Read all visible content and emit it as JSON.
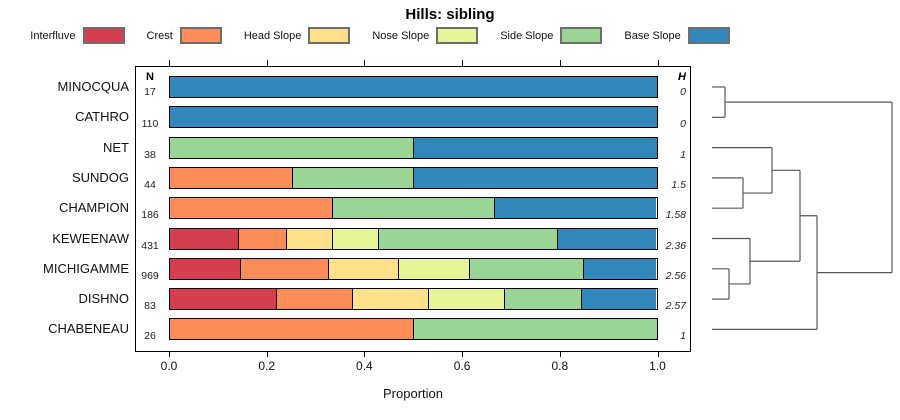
{
  "title": "Hills: sibling",
  "xlabel": "Proportion",
  "n_header": "N",
  "h_header": "H",
  "legend": [
    {
      "label": "Interfluve",
      "color": "#D53E4F"
    },
    {
      "label": "Crest",
      "color": "#FC8D59"
    },
    {
      "label": "Head Slope",
      "color": "#FEE08B"
    },
    {
      "label": "Nose Slope",
      "color": "#E6F598"
    },
    {
      "label": "Side Slope",
      "color": "#99D594"
    },
    {
      "label": "Base Slope",
      "color": "#3288BD"
    }
  ],
  "chart_data": {
    "type": "bar",
    "stacked": true,
    "orientation": "horizontal",
    "title": "Hills: sibling",
    "xlabel": "Proportion",
    "xlim": [
      0,
      1
    ],
    "xtick_labels": [
      "0.0",
      "0.2",
      "0.4",
      "0.6",
      "0.8",
      "1.0"
    ],
    "xtick_values": [
      0,
      0.2,
      0.4,
      0.6,
      0.8,
      1.0
    ],
    "series_names": [
      "Interfluve",
      "Crest",
      "Head Slope",
      "Nose Slope",
      "Side Slope",
      "Base Slope"
    ],
    "series_colors": [
      "#D53E4F",
      "#FC8D59",
      "#FEE08B",
      "#E6F598",
      "#99D594",
      "#3288BD"
    ],
    "rows": [
      {
        "label": "MINOCQUA",
        "n": "17",
        "h": "0",
        "values": [
          0,
          0,
          0,
          0,
          0,
          1.0
        ]
      },
      {
        "label": "CATHRO",
        "n": "110",
        "h": "0",
        "values": [
          0,
          0,
          0,
          0,
          0,
          1.0
        ]
      },
      {
        "label": "NET",
        "n": "38",
        "h": "1",
        "values": [
          0,
          0,
          0,
          0,
          0.5,
          0.5
        ]
      },
      {
        "label": "SUNDOG",
        "n": "44",
        "h": "1.5",
        "values": [
          0,
          0.25,
          0,
          0,
          0.25,
          0.5
        ]
      },
      {
        "label": "CHAMPION",
        "n": "186",
        "h": "1.58",
        "values": [
          0,
          0.333,
          0,
          0,
          0.332,
          0.335
        ]
      },
      {
        "label": "KEWEENAW",
        "n": "431",
        "h": "2.36",
        "values": [
          0.14,
          0.098,
          0.094,
          0.095,
          0.369,
          0.204
        ]
      },
      {
        "label": "MICHIGAMME",
        "n": "969",
        "h": "2.56",
        "values": [
          0.143,
          0.182,
          0.144,
          0.145,
          0.236,
          0.15
        ]
      },
      {
        "label": "DISHNO",
        "n": "83",
        "h": "2.57",
        "values": [
          0.217,
          0.157,
          0.157,
          0.156,
          0.157,
          0.156
        ]
      },
      {
        "label": "CHABENEAU",
        "n": "26",
        "h": "1",
        "values": [
          0,
          0.5,
          0,
          0,
          0.5,
          0
        ]
      }
    ]
  },
  "dendrogram": {
    "stub_x": 712,
    "merges": [
      {
        "a": "MINOCQUA",
        "b": "CATHRO",
        "x": 725
      },
      {
        "a": "SUNDOG",
        "b": "CHAMPION",
        "x": 743
      },
      {
        "a": "NET",
        "b": "#1",
        "x": 772
      },
      {
        "a": "MICHIGAMME",
        "b": "DISHNO",
        "x": 729
      },
      {
        "a": "KEWEENAW",
        "b": "#3",
        "x": 750
      },
      {
        "a": "#2",
        "b": "#4",
        "x": 800
      },
      {
        "a": "#5",
        "b": "CHABENEAU",
        "x": 817
      },
      {
        "a": "#0",
        "b": "#6",
        "x": 892
      }
    ]
  }
}
